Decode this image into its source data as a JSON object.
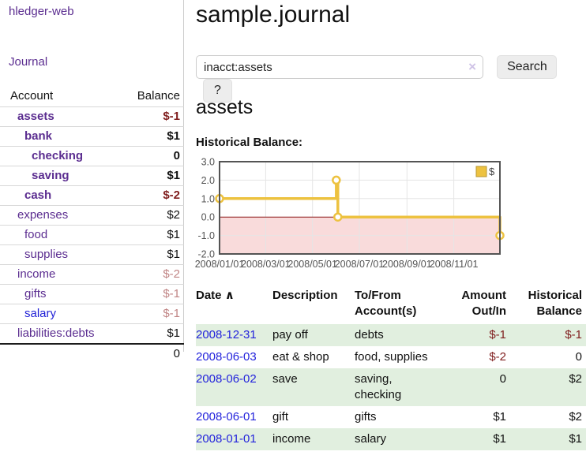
{
  "app_title": "hledger-web",
  "sidebar": {
    "journal_link": "Journal",
    "accounts": {
      "col_account": "Account",
      "col_balance": "Balance",
      "rows": [
        {
          "name": "assets",
          "balance": "$-1"
        },
        {
          "name": "bank",
          "balance": "$1"
        },
        {
          "name": "checking",
          "balance": "0"
        },
        {
          "name": "saving",
          "balance": "$1"
        },
        {
          "name": "cash",
          "balance": "$-2"
        },
        {
          "name": "expenses",
          "balance": "$2"
        },
        {
          "name": "food",
          "balance": "$1"
        },
        {
          "name": "supplies",
          "balance": "$1"
        },
        {
          "name": "income",
          "balance": "$-2"
        },
        {
          "name": "gifts",
          "balance": "$-1"
        },
        {
          "name": "salary",
          "balance": "$-1"
        },
        {
          "name": "liabilities:debts",
          "balance": "$1"
        }
      ],
      "total": "0"
    }
  },
  "header": {
    "title": "sample.journal",
    "search": {
      "value": "inacct:assets",
      "clear_icon": "×",
      "search_button": "Search",
      "help_button": "?"
    }
  },
  "account_page": {
    "heading": "assets",
    "chart_label": "Historical Balance:"
  },
  "chart_data": {
    "type": "line",
    "title": "Historical Balance:",
    "step": true,
    "xrange": [
      "2008-01-01",
      "2008-12-31"
    ],
    "ylim": [
      -2,
      3
    ],
    "yticks": [
      3,
      2,
      1,
      0,
      -1,
      -2
    ],
    "xticks": [
      "2008/01/01",
      "2008/03/01",
      "2008/05/01",
      "2008/07/01",
      "2008/09/01",
      "2008/11/01"
    ],
    "grid": true,
    "legend_position": "top-right",
    "negative_region_fill": "#f9dbdb",
    "zero_line_color": "#8b1616",
    "series": [
      {
        "name": "$",
        "color": "#edc240",
        "points": [
          {
            "x": "2008-01-01",
            "y": 1
          },
          {
            "x": "2008-06-01",
            "y": 2
          },
          {
            "x": "2008-06-03",
            "y": 0
          },
          {
            "x": "2008-12-31",
            "y": -1
          }
        ]
      }
    ]
  },
  "register": {
    "headers": {
      "date": "Date",
      "description": "Description",
      "account": "To/From Account(s)",
      "amount": "Amount Out/In",
      "balance": "Historical Balance"
    },
    "sort_icon": "∧",
    "rows": [
      {
        "date": "2008-12-31",
        "description": "pay off",
        "accounts": "debts",
        "amount": "$-1",
        "balance": "$-1"
      },
      {
        "date": "2008-06-03",
        "description": "eat & shop",
        "accounts": "food, supplies",
        "amount": "$-2",
        "balance": "0"
      },
      {
        "date": "2008-06-02",
        "description": "save",
        "accounts": "saving, checking",
        "amount": "0",
        "balance": "$2"
      },
      {
        "date": "2008-06-01",
        "description": "gift",
        "accounts": "gifts",
        "amount": "$1",
        "balance": "$2"
      },
      {
        "date": "2008-01-01",
        "description": "income",
        "accounts": "salary",
        "amount": "$1",
        "balance": "$1"
      }
    ]
  }
}
